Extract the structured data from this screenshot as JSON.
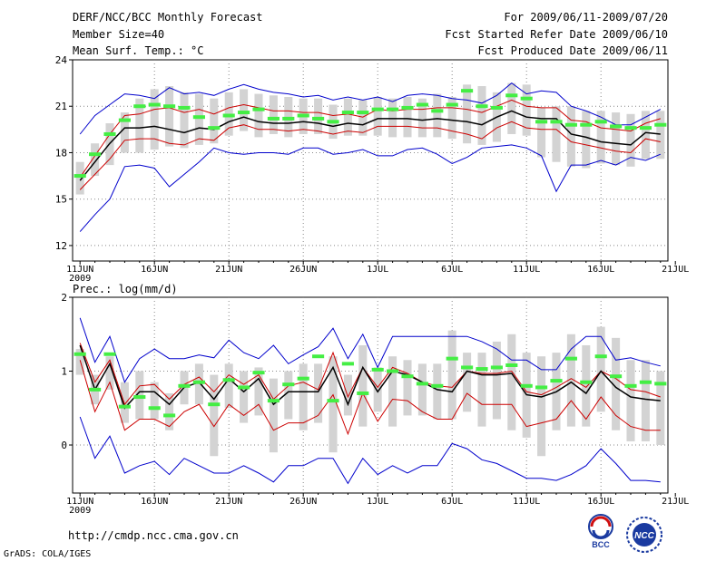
{
  "header": {
    "title": "DERF/NCC/BCC Monthly Forecast",
    "member_size": "Member Size=40",
    "period": "For 2009/06/11-2009/07/20",
    "fcst_started": "Fcst Started Refer Date 2009/06/10",
    "fcst_produced": "Fcst Produced Date 2009/06/11"
  },
  "footer": {
    "url": "http://cmdp.ncc.cma.gov.cn",
    "grads_credit": "GrADS: COLA/IGES",
    "bcc_logo_label": "BCC",
    "ncc_logo_label": "NCC"
  },
  "colors": {
    "ensemble_mean": "#000000",
    "inner_bounds": "#cc0000",
    "outer_bounds": "#0000cc",
    "spread_box": "#d3d3d3",
    "reference": "#44ee44",
    "grid": "#888888"
  },
  "chart_data": [
    {
      "type": "line",
      "title": "Mean Surf. Temp.: °C",
      "xlabel": "",
      "ylabel": "",
      "ylim": [
        11,
        24
      ],
      "yticks": [
        12,
        15,
        18,
        21,
        24
      ],
      "x_tick_labels": [
        "11JUN",
        "16JUN",
        "21JUN",
        "26JUN",
        "1JUL",
        "6JUL",
        "11JUL",
        "16JUL",
        "21JUL"
      ],
      "x_year_label": "2009",
      "grid": true,
      "days": 40,
      "series": [
        {
          "name": "max",
          "color": "#0000cc",
          "values": [
            19.2,
            20.4,
            21.1,
            21.8,
            21.7,
            21.5,
            22.2,
            21.8,
            21.9,
            21.7,
            22.1,
            22.4,
            22.1,
            21.9,
            21.8,
            21.6,
            21.7,
            21.4,
            21.6,
            21.4,
            21.6,
            21.3,
            21.7,
            21.8,
            21.7,
            21.5,
            21.4,
            21.2,
            21.7,
            22.5,
            21.8,
            22.0,
            21.9,
            21.0,
            20.7,
            20.3,
            19.8,
            19.8,
            20.3,
            20.8
          ]
        },
        {
          "name": "upper",
          "color": "#cc0000",
          "values": [
            16.4,
            17.8,
            19.2,
            20.4,
            20.5,
            20.8,
            20.9,
            20.6,
            20.8,
            20.5,
            20.9,
            21.1,
            20.9,
            20.7,
            20.7,
            20.6,
            20.6,
            20.4,
            20.5,
            20.3,
            20.8,
            20.7,
            20.8,
            20.8,
            20.9,
            20.9,
            20.8,
            20.6,
            21.0,
            21.4,
            21.0,
            20.9,
            20.9,
            20.1,
            20.0,
            19.6,
            19.5,
            19.4,
            19.9,
            20.2
          ]
        },
        {
          "name": "mean",
          "color": "#000000",
          "values": [
            16.2,
            17.4,
            18.6,
            19.6,
            19.6,
            19.7,
            19.5,
            19.3,
            19.6,
            19.5,
            20.0,
            20.3,
            20.0,
            19.9,
            19.9,
            20.0,
            19.9,
            19.7,
            19.9,
            19.8,
            20.2,
            20.2,
            20.2,
            20.1,
            20.2,
            20.1,
            20.0,
            19.8,
            20.3,
            20.7,
            20.3,
            20.2,
            20.2,
            19.2,
            19.0,
            18.7,
            18.6,
            18.5,
            19.3,
            19.2
          ]
        },
        {
          "name": "lower",
          "color": "#cc0000",
          "values": [
            15.6,
            16.6,
            17.6,
            18.8,
            18.9,
            18.9,
            18.6,
            18.5,
            18.9,
            18.8,
            19.6,
            19.8,
            19.5,
            19.5,
            19.4,
            19.5,
            19.4,
            19.2,
            19.4,
            19.3,
            19.7,
            19.7,
            19.7,
            19.6,
            19.6,
            19.4,
            19.2,
            18.9,
            19.6,
            20.0,
            19.6,
            19.5,
            19.5,
            18.7,
            18.5,
            18.3,
            18.1,
            18.0,
            18.9,
            18.7
          ]
        },
        {
          "name": "min",
          "color": "#0000cc",
          "values": [
            12.9,
            14.0,
            15.0,
            17.1,
            17.2,
            17.0,
            15.8,
            16.6,
            17.4,
            18.3,
            18.0,
            17.9,
            18.0,
            18.0,
            17.9,
            18.3,
            18.3,
            17.9,
            18.0,
            18.2,
            17.8,
            17.8,
            18.2,
            18.3,
            17.9,
            17.3,
            17.7,
            18.3,
            18.4,
            18.5,
            18.3,
            17.8,
            15.5,
            17.2,
            17.2,
            17.5,
            17.2,
            17.7,
            17.5,
            17.9
          ]
        },
        {
          "name": "reference",
          "color": "#44ee44",
          "values": [
            16.5,
            17.9,
            19.2,
            20.1,
            21.0,
            21.1,
            21.0,
            20.9,
            20.3,
            19.6,
            20.4,
            20.6,
            20.8,
            20.2,
            20.2,
            20.4,
            20.2,
            20.0,
            20.6,
            20.6,
            20.8,
            20.8,
            20.9,
            21.1,
            20.7,
            21.1,
            22.0,
            21.0,
            20.9,
            21.7,
            21.5,
            20.0,
            20.0,
            19.8,
            19.8,
            20.0,
            19.7,
            19.6,
            19.6,
            19.8
          ]
        }
      ],
      "spread": {
        "top": [
          17.4,
          18.6,
          19.9,
          20.6,
          21.5,
          22.1,
          22.3,
          21.9,
          21.8,
          21.5,
          21.9,
          22.1,
          21.8,
          21.7,
          21.6,
          21.5,
          21.5,
          21.1,
          21.5,
          21.4,
          21.6,
          21.5,
          21.6,
          21.5,
          21.8,
          21.6,
          22.4,
          22.3,
          21.9,
          22.5,
          22.4,
          20.9,
          21.0,
          21.0,
          20.7,
          20.7,
          20.6,
          20.5,
          20.7,
          20.7
        ],
        "bottom": [
          15.3,
          16.5,
          17.2,
          18.0,
          18.0,
          18.2,
          18.4,
          18.3,
          18.5,
          18.6,
          19.1,
          19.4,
          19.0,
          19.2,
          19.0,
          19.2,
          19.2,
          18.9,
          19.1,
          19.1,
          19.1,
          19.0,
          19.0,
          19.0,
          19.0,
          18.9,
          18.6,
          18.5,
          18.7,
          19.2,
          19.1,
          17.7,
          17.4,
          17.1,
          17.0,
          17.3,
          17.2,
          17.1,
          17.6,
          17.6
        ]
      }
    },
    {
      "type": "line",
      "title": "Prec.: log(mm/d)",
      "xlabel": "",
      "ylabel": "",
      "ylim": [
        -0.65,
        2.0
      ],
      "yticks": [
        0,
        1,
        2
      ],
      "x_tick_labels": [
        "11JUN",
        "16JUN",
        "21JUN",
        "26JUN",
        "1JUL",
        "6JUL",
        "11JUL",
        "16JUL",
        "21JUL"
      ],
      "x_year_label": "2009",
      "grid": true,
      "days": 40,
      "series": [
        {
          "name": "max",
          "color": "#0000cc",
          "values": [
            1.72,
            1.12,
            1.47,
            0.85,
            1.17,
            1.3,
            1.17,
            1.17,
            1.22,
            1.18,
            1.42,
            1.25,
            1.17,
            1.35,
            1.1,
            1.22,
            1.33,
            1.58,
            1.17,
            1.5,
            1.05,
            1.47,
            1.47,
            1.47,
            1.47,
            1.47,
            1.47,
            1.4,
            1.3,
            1.15,
            1.15,
            1.02,
            1.02,
            1.3,
            1.47,
            1.47,
            1.15,
            1.18,
            1.12,
            1.07
          ]
        },
        {
          "name": "upper",
          "color": "#cc0000",
          "values": [
            1.38,
            0.85,
            1.15,
            0.55,
            0.8,
            0.82,
            0.62,
            0.82,
            0.92,
            0.72,
            0.95,
            0.82,
            0.95,
            0.62,
            0.8,
            0.85,
            0.75,
            1.25,
            0.65,
            1.05,
            0.78,
            1.05,
            0.97,
            0.85,
            0.8,
            0.78,
            1.0,
            0.97,
            0.97,
            1.0,
            0.72,
            0.68,
            0.78,
            0.9,
            0.78,
            1.0,
            0.9,
            0.75,
            0.72,
            0.65
          ]
        },
        {
          "name": "mean",
          "color": "#000000",
          "values": [
            1.35,
            0.75,
            1.1,
            0.5,
            0.72,
            0.72,
            0.55,
            0.78,
            0.85,
            0.62,
            0.9,
            0.72,
            0.9,
            0.55,
            0.72,
            0.72,
            0.72,
            1.05,
            0.55,
            1.05,
            0.72,
            1.0,
            0.95,
            0.85,
            0.75,
            0.72,
            1.0,
            0.95,
            0.95,
            0.97,
            0.68,
            0.65,
            0.72,
            0.85,
            0.7,
            1.0,
            0.78,
            0.65,
            0.62,
            0.6
          ]
        },
        {
          "name": "lower",
          "color": "#cc0000",
          "values": [
            1.15,
            0.45,
            0.85,
            0.2,
            0.35,
            0.35,
            0.25,
            0.45,
            0.55,
            0.25,
            0.55,
            0.4,
            0.55,
            0.2,
            0.3,
            0.3,
            0.4,
            0.68,
            0.15,
            0.7,
            0.32,
            0.62,
            0.6,
            0.45,
            0.35,
            0.35,
            0.7,
            0.55,
            0.55,
            0.55,
            0.25,
            0.3,
            0.35,
            0.6,
            0.35,
            0.65,
            0.4,
            0.25,
            0.2,
            0.2
          ]
        },
        {
          "name": "min",
          "color": "#0000cc",
          "values": [
            0.38,
            -0.18,
            0.12,
            -0.38,
            -0.28,
            -0.22,
            -0.4,
            -0.18,
            -0.28,
            -0.38,
            -0.38,
            -0.28,
            -0.38,
            -0.5,
            -0.28,
            -0.28,
            -0.18,
            -0.18,
            -0.52,
            -0.18,
            -0.4,
            -0.28,
            -0.38,
            -0.28,
            -0.28,
            0.02,
            -0.05,
            -0.2,
            -0.25,
            -0.35,
            -0.45,
            -0.45,
            -0.48,
            -0.4,
            -0.28,
            -0.05,
            -0.25,
            -0.48,
            -0.48,
            -0.5
          ]
        },
        {
          "name": "reference",
          "color": "#44ee44",
          "values": [
            1.23,
            0.75,
            1.23,
            0.52,
            0.65,
            0.5,
            0.4,
            0.8,
            0.85,
            0.55,
            0.88,
            0.78,
            0.98,
            0.6,
            0.82,
            0.9,
            1.2,
            0.6,
            1.1,
            0.7,
            1.02,
            1.0,
            0.93,
            0.83,
            0.8,
            1.17,
            1.05,
            1.03,
            1.05,
            1.08,
            0.8,
            0.78,
            0.87,
            1.17,
            0.85,
            1.2,
            0.93,
            0.8,
            0.85,
            0.83
          ]
        }
      ],
      "spread": {
        "top": [
          1.3,
          0.95,
          1.2,
          0.85,
          1.0,
          0.85,
          0.7,
          1.0,
          1.1,
          0.95,
          1.1,
          1.0,
          1.05,
          0.9,
          1.0,
          1.1,
          1.1,
          1.2,
          0.95,
          1.35,
          1.05,
          1.2,
          1.15,
          1.1,
          1.1,
          1.55,
          1.25,
          1.25,
          1.4,
          1.5,
          1.25,
          1.2,
          1.25,
          1.5,
          1.35,
          1.6,
          1.45,
          1.15,
          1.15,
          1.0
        ],
        "bottom": [
          0.95,
          0.55,
          0.75,
          0.3,
          0.35,
          0.35,
          0.2,
          0.55,
          0.55,
          -0.15,
          0.5,
          0.3,
          0.4,
          -0.1,
          0.35,
          0.2,
          0.3,
          -0.1,
          0.4,
          0.25,
          0.45,
          0.25,
          0.4,
          0.4,
          0.35,
          0.35,
          0.45,
          0.25,
          0.35,
          0.2,
          0.1,
          -0.15,
          0.2,
          0.25,
          0.25,
          0.45,
          0.2,
          0.05,
          0.05,
          0.0
        ]
      }
    }
  ]
}
